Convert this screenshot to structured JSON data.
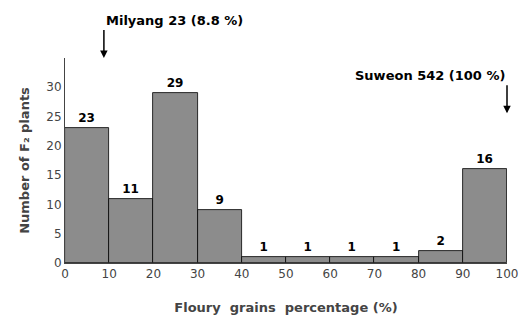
{
  "chart_data": {
    "type": "histogram",
    "bins": [
      0,
      10,
      20,
      30,
      40,
      50,
      60,
      70,
      80,
      90,
      100
    ],
    "values": [
      23,
      11,
      29,
      9,
      1,
      1,
      1,
      1,
      2,
      16
    ],
    "color": "#8c8c8c",
    "data_labels": true,
    "x_label": "Floury  grains  percentage (%)",
    "y_label": "Number of F₂ plants",
    "xlim": [
      0,
      100
    ],
    "ylim": [
      0,
      35
    ],
    "xticks": [
      0,
      10,
      20,
      30,
      40,
      50,
      60,
      70,
      80,
      90,
      100
    ],
    "yticks": [
      0,
      5,
      10,
      15,
      20,
      25,
      30
    ],
    "grid": false,
    "annotations": [
      {
        "text": "Milyang 23 (8.8 %)",
        "x": 8.8
      },
      {
        "text": "Suweon 542 (100 %)",
        "x": 100
      }
    ]
  }
}
